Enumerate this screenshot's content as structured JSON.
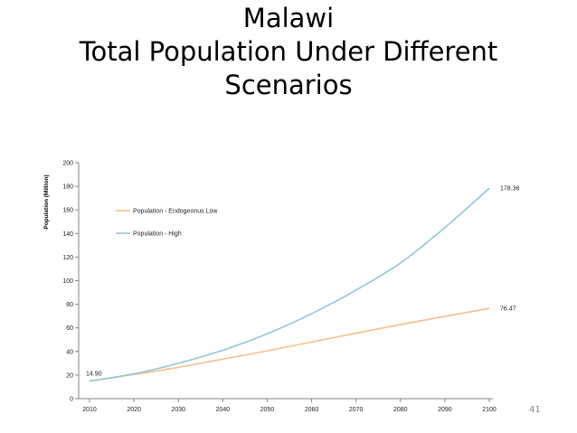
{
  "slide": {
    "title_line1": "Malawi",
    "title_line2": "Total Population Under Different",
    "title_line3": "Scenarios",
    "page_number": "41"
  },
  "chart_data": {
    "type": "line",
    "title": "",
    "xlabel": "",
    "ylabel": "Population (Million)",
    "xlim": [
      2010,
      2100
    ],
    "ylim": [
      0,
      200
    ],
    "x_ticks": [
      "2010",
      "2020",
      "2030",
      "2040",
      "2050",
      "2060",
      "2070",
      "2080",
      "2090",
      "2100"
    ],
    "y_ticks": [
      "0",
      "20",
      "40",
      "60",
      "80",
      "100",
      "120",
      "140",
      "160",
      "180",
      "200"
    ],
    "grid": false,
    "legend_position": "top-left",
    "x": [
      2010,
      2020,
      2030,
      2040,
      2050,
      2060,
      2070,
      2080,
      2090,
      2100
    ],
    "series": [
      {
        "name": "Population - Endogeonus Low",
        "color": "#f5c08a",
        "values": [
          14.9,
          20.5,
          26.5,
          33.5,
          40.5,
          48,
          55.5,
          62.8,
          69.8,
          76.47
        ]
      },
      {
        "name": "Population - High",
        "color": "#8fc7d3",
        "values": [
          14.9,
          21,
          30,
          41,
          55,
          72,
          92,
          115,
          145,
          178.36
        ]
      }
    ],
    "annotations": [
      {
        "text": "14.90",
        "x": 2010,
        "y": 14.9
      },
      {
        "text": "178.36",
        "x": 2100,
        "y": 178.36
      },
      {
        "text": "76.47",
        "x": 2100,
        "y": 76.47
      }
    ]
  }
}
